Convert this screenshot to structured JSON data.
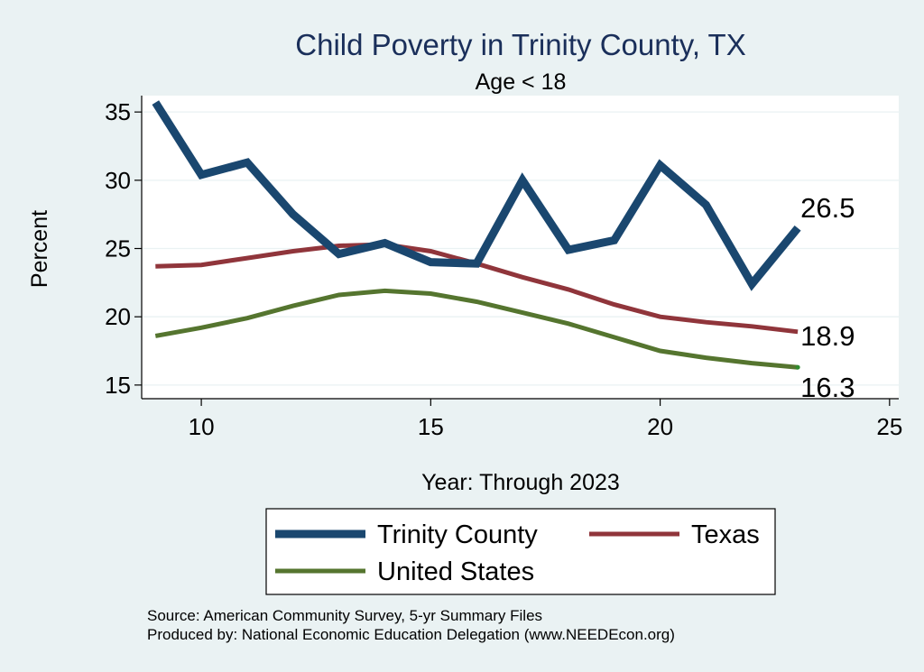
{
  "chart_data": {
    "type": "line",
    "title": "Child Poverty in Trinity County, TX",
    "subtitle": "Age < 18",
    "xlabel": "Year: Through 2023",
    "ylabel": "Percent",
    "xlim": [
      8.7,
      25.2
    ],
    "ylim": [
      14.0,
      36.2
    ],
    "xticks": [
      10,
      15,
      20,
      25
    ],
    "yticks": [
      15,
      20,
      25,
      30,
      35
    ],
    "grid": true,
    "x": [
      9,
      10,
      11,
      12,
      13,
      14,
      15,
      16,
      17,
      18,
      19,
      20,
      21,
      22,
      23
    ],
    "series": [
      {
        "name": "Trinity County",
        "color": "#1a476f",
        "values": [
          35.7,
          30.4,
          31.3,
          27.5,
          24.6,
          25.4,
          24.0,
          23.9,
          30.0,
          24.9,
          25.6,
          31.1,
          28.2,
          22.4,
          26.5
        ],
        "end_label": "26.5"
      },
      {
        "name": "Texas",
        "color": "#90353b",
        "values": [
          23.7,
          23.8,
          24.3,
          24.8,
          25.2,
          25.3,
          24.8,
          23.9,
          22.9,
          22.0,
          20.9,
          20.0,
          19.6,
          19.3,
          18.9
        ],
        "end_label": "18.9"
      },
      {
        "name": "United States",
        "color": "#55752f",
        "values": [
          18.6,
          19.2,
          19.9,
          20.8,
          21.6,
          21.9,
          21.7,
          21.1,
          20.3,
          19.5,
          18.5,
          17.5,
          17.0,
          16.6,
          16.3
        ],
        "end_label": "16.3"
      }
    ],
    "legend_position": "bottom",
    "notes": [
      "Source: American Community Survey, 5-yr Summary Files",
      "Produced by: National Economic Education Delegation (www.NEEDEcon.org)"
    ]
  }
}
